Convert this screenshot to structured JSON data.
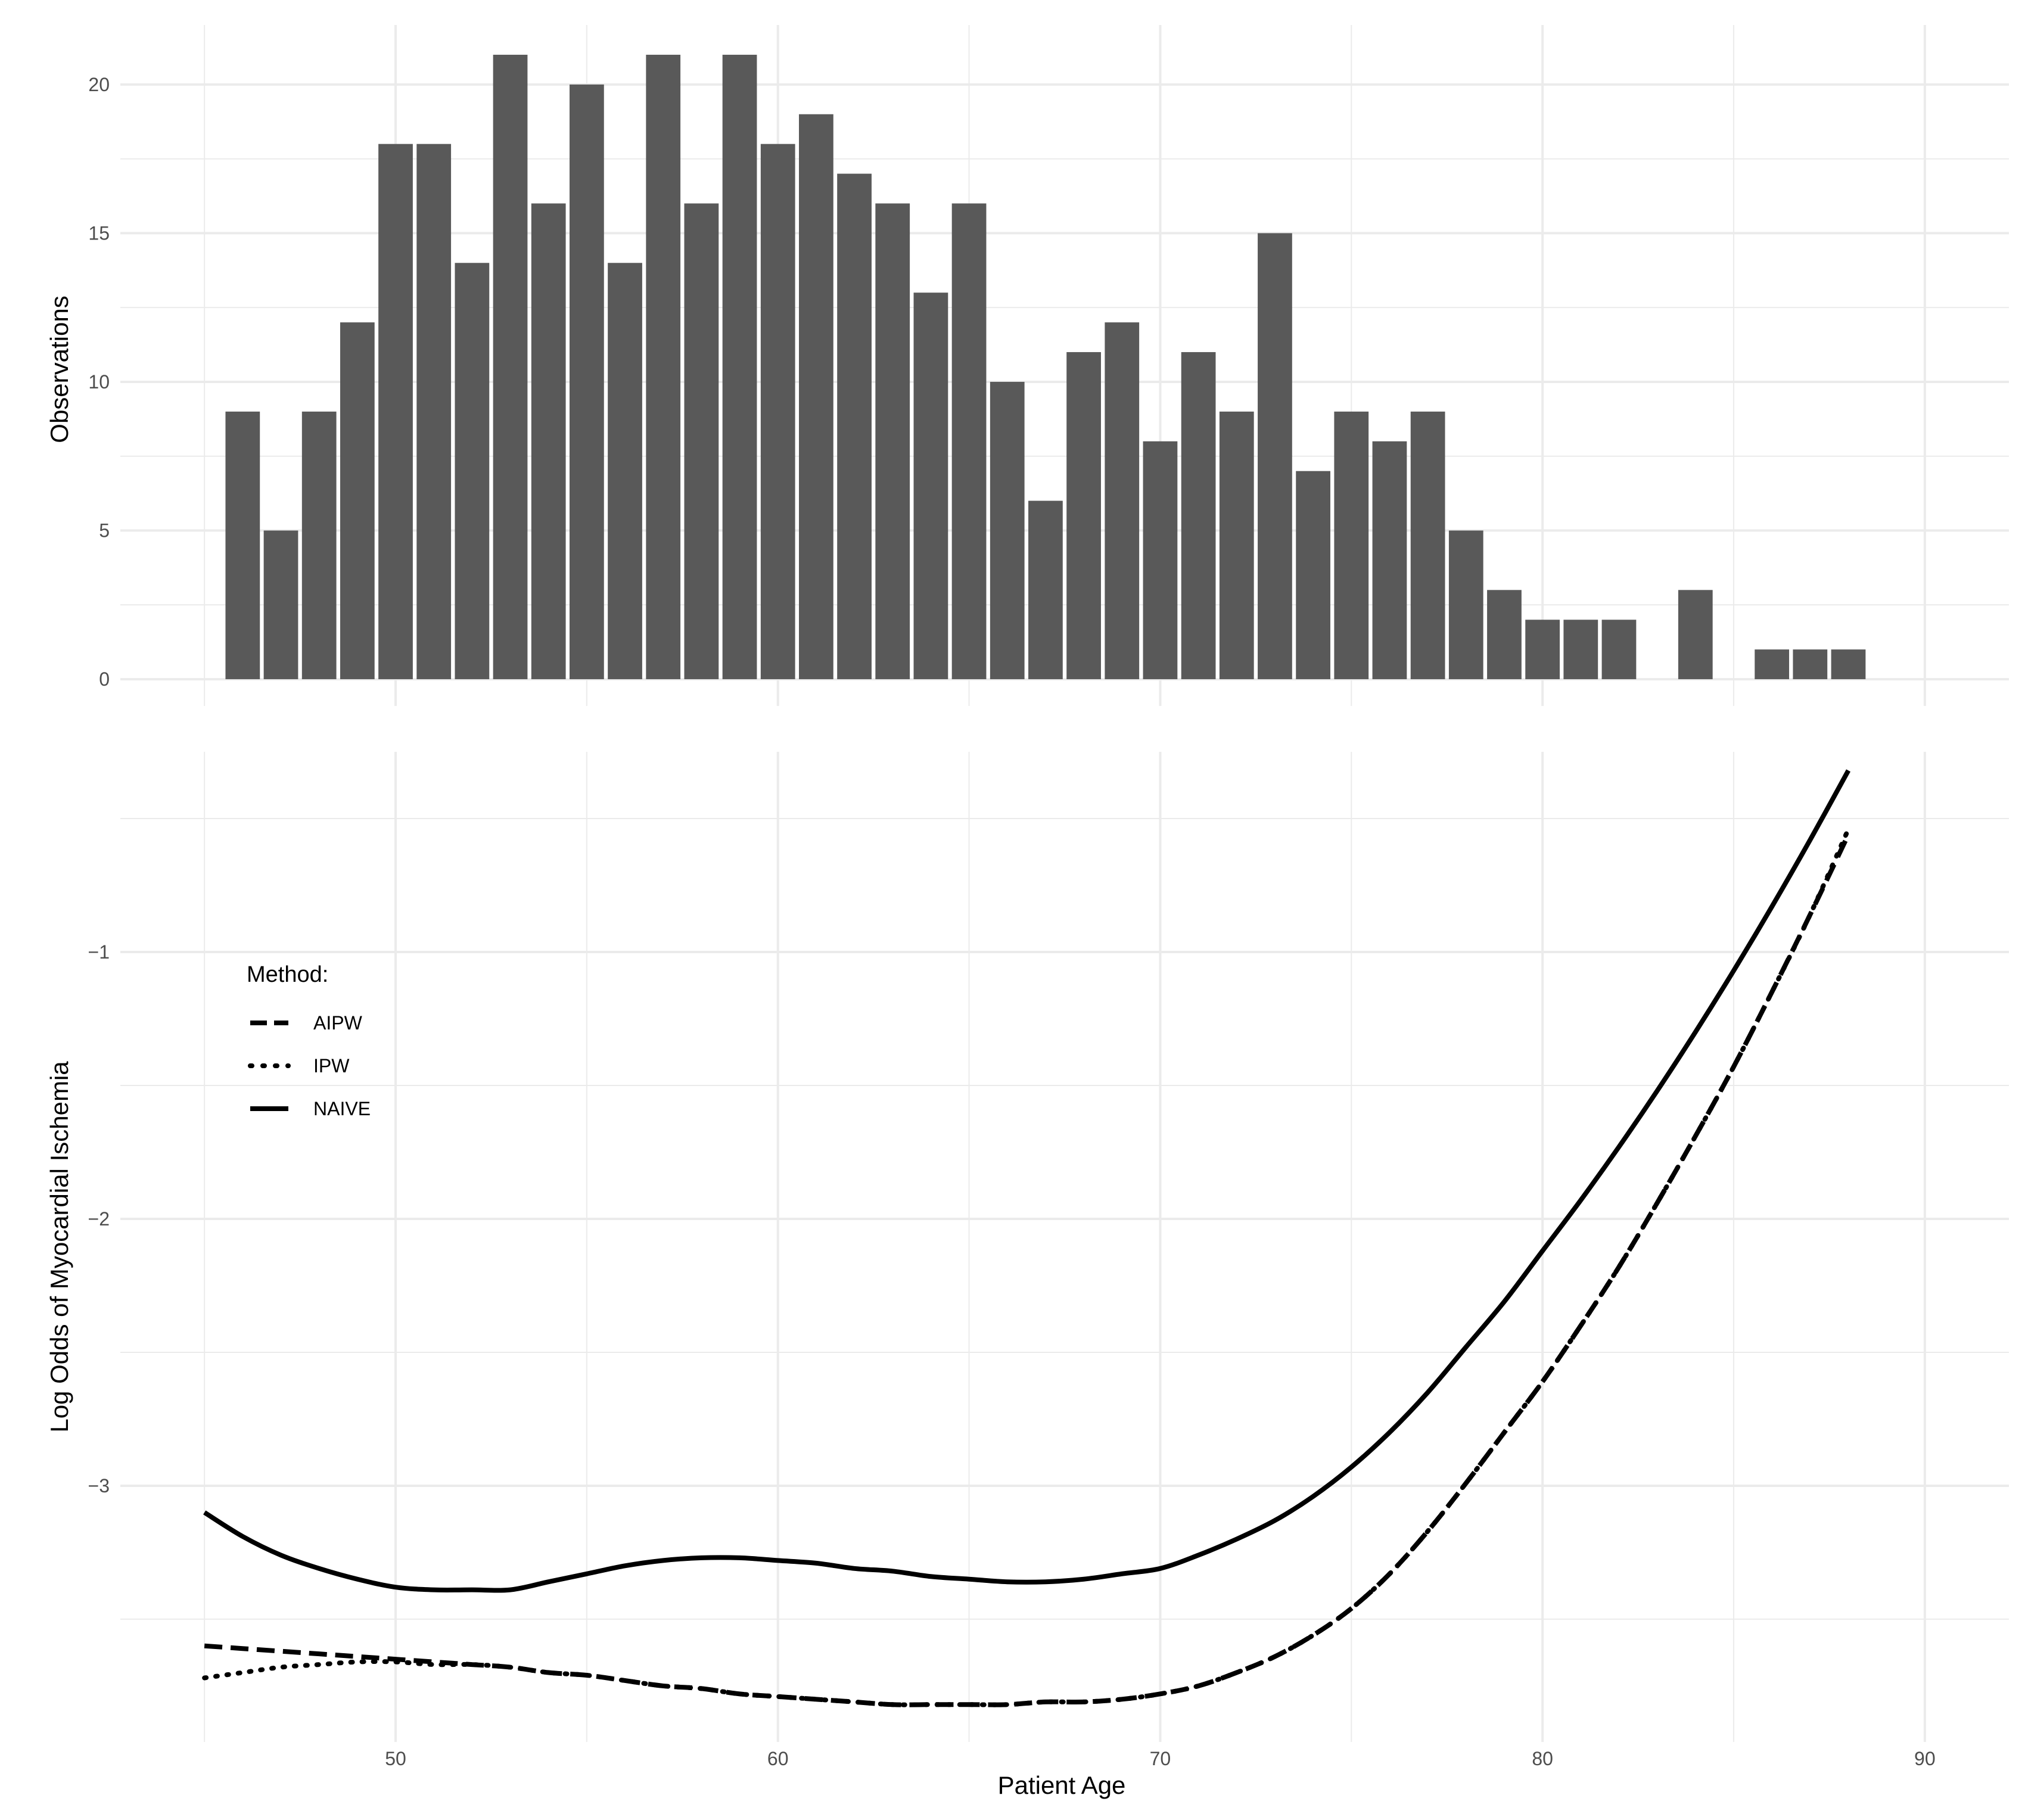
{
  "chart_data": [
    {
      "type": "bar",
      "ylabel": "Observations",
      "ylim": [
        -0.9,
        22.0
      ],
      "yticks": [
        "0",
        "5",
        "10",
        "15",
        "20"
      ],
      "grid": true,
      "x": [
        46,
        47,
        48,
        49,
        50,
        51,
        52,
        53,
        54,
        55,
        56,
        57,
        58,
        59,
        60,
        61,
        62,
        63,
        64,
        65,
        66,
        67,
        68,
        69,
        70,
        71,
        72,
        73,
        74,
        75,
        76,
        77,
        78,
        79,
        80,
        81,
        82,
        84,
        86,
        87,
        88
      ],
      "values": [
        9,
        5,
        9,
        12,
        18,
        18,
        14,
        21,
        16,
        20,
        14,
        21,
        16,
        21,
        18,
        19,
        17,
        16,
        13,
        16,
        10,
        6,
        11,
        12,
        8,
        11,
        9,
        15,
        7,
        9,
        8,
        9,
        5,
        3,
        2,
        2,
        2,
        3,
        1,
        1,
        1
      ]
    },
    {
      "type": "line",
      "xlabel": "Patient Age",
      "ylabel": "Log Odds of Myocardial Ischemia",
      "xlim": [
        42.8,
        92.2
      ],
      "ylim": [
        -3.96,
        -0.25
      ],
      "xticks": [
        "50",
        "60",
        "70",
        "80",
        "90"
      ],
      "yticks": [
        "-1",
        "-2",
        "-3"
      ],
      "grid": true,
      "legend": {
        "title": "Method:",
        "position": "top-left"
      },
      "series": [
        {
          "name": "AIPW",
          "dash": "dashed",
          "x": [
            45,
            46,
            47,
            48,
            49,
            50,
            51,
            52,
            53,
            54,
            55,
            56,
            57,
            58,
            59,
            60,
            61,
            62,
            63,
            64,
            65,
            66,
            67,
            68,
            69,
            70,
            71,
            72,
            73,
            74,
            75,
            76,
            77,
            78,
            79,
            80,
            81,
            82,
            83,
            84,
            85,
            86,
            87,
            88
          ],
          "y": [
            -3.6,
            -3.61,
            -3.62,
            -3.63,
            -3.64,
            -3.65,
            -3.66,
            -3.67,
            -3.68,
            -3.7,
            -3.71,
            -3.73,
            -3.75,
            -3.76,
            -3.78,
            -3.79,
            -3.8,
            -3.81,
            -3.82,
            -3.82,
            -3.82,
            -3.82,
            -3.81,
            -3.81,
            -3.8,
            -3.78,
            -3.75,
            -3.7,
            -3.64,
            -3.56,
            -3.46,
            -3.33,
            -3.17,
            -2.99,
            -2.8,
            -2.61,
            -2.4,
            -2.18,
            -1.94,
            -1.69,
            -1.43,
            -1.15,
            -0.86,
            -0.56
          ]
        },
        {
          "name": "IPW",
          "dash": "dotted",
          "x": [
            45,
            46,
            47,
            48,
            49,
            50,
            51,
            52,
            53,
            54,
            55,
            56,
            57,
            58,
            59,
            60,
            61,
            62,
            63,
            64,
            65,
            66,
            67,
            68,
            69,
            70,
            71,
            72,
            73,
            74,
            75,
            76,
            77,
            78,
            79,
            80,
            81,
            82,
            83,
            84,
            85,
            86,
            87,
            88
          ],
          "y": [
            -3.72,
            -3.7,
            -3.68,
            -3.67,
            -3.66,
            -3.66,
            -3.67,
            -3.67,
            -3.68,
            -3.7,
            -3.71,
            -3.73,
            -3.75,
            -3.76,
            -3.78,
            -3.79,
            -3.8,
            -3.81,
            -3.82,
            -3.82,
            -3.82,
            -3.82,
            -3.81,
            -3.81,
            -3.8,
            -3.78,
            -3.75,
            -3.7,
            -3.64,
            -3.56,
            -3.46,
            -3.33,
            -3.17,
            -2.99,
            -2.8,
            -2.61,
            -2.4,
            -2.18,
            -1.94,
            -1.69,
            -1.43,
            -1.15,
            -0.86,
            -0.54
          ]
        },
        {
          "name": "NAIVE",
          "dash": "solid",
          "x": [
            45,
            46,
            47,
            48,
            49,
            50,
            51,
            52,
            53,
            54,
            55,
            56,
            57,
            58,
            59,
            60,
            61,
            62,
            63,
            64,
            65,
            66,
            67,
            68,
            69,
            70,
            71,
            72,
            73,
            74,
            75,
            76,
            77,
            78,
            79,
            80,
            81,
            82,
            83,
            84,
            85,
            86,
            87,
            88
          ],
          "y": [
            -3.1,
            -3.19,
            -3.26,
            -3.31,
            -3.35,
            -3.38,
            -3.39,
            -3.39,
            -3.39,
            -3.36,
            -3.33,
            -3.3,
            -3.28,
            -3.27,
            -3.27,
            -3.28,
            -3.29,
            -3.31,
            -3.32,
            -3.34,
            -3.35,
            -3.36,
            -3.36,
            -3.35,
            -3.33,
            -3.31,
            -3.26,
            -3.2,
            -3.13,
            -3.04,
            -2.93,
            -2.8,
            -2.65,
            -2.48,
            -2.31,
            -2.12,
            -1.93,
            -1.73,
            -1.52,
            -1.3,
            -1.07,
            -0.83,
            -0.58,
            -0.32
          ]
        }
      ]
    }
  ]
}
